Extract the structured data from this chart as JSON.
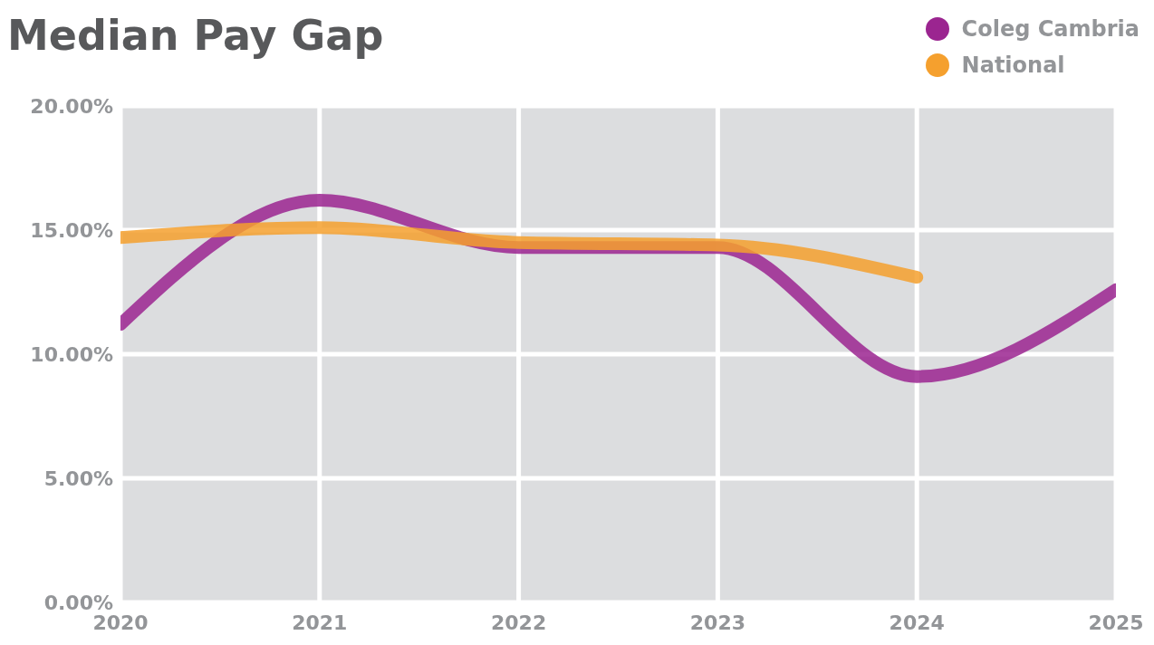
{
  "chart_data": {
    "type": "line",
    "title": "Median Pay Gap",
    "x": [
      2020,
      2021,
      2022,
      2023,
      2024,
      2025
    ],
    "series": [
      {
        "name": "Coleg Cambria",
        "color": "#9b2590",
        "values": [
          11.2,
          16.2,
          14.3,
          14.3,
          9.1,
          12.6
        ]
      },
      {
        "name": "National",
        "color": "#f5a02e",
        "values": [
          14.7,
          15.1,
          14.5,
          14.4,
          13.1,
          null
        ]
      }
    ],
    "xlim": [
      2020,
      2025
    ],
    "xticks": [
      2020,
      2021,
      2022,
      2023,
      2024,
      2025
    ],
    "ylim": [
      0,
      20
    ],
    "yticks": [
      {
        "value": 0,
        "label": "0.00%"
      },
      {
        "value": 5,
        "label": "5.00%"
      },
      {
        "value": 10,
        "label": "10.00%"
      },
      {
        "value": 15,
        "label": "15.00%"
      },
      {
        "value": 20,
        "label": "20.00%"
      }
    ],
    "grid": true,
    "legend": "top right"
  }
}
